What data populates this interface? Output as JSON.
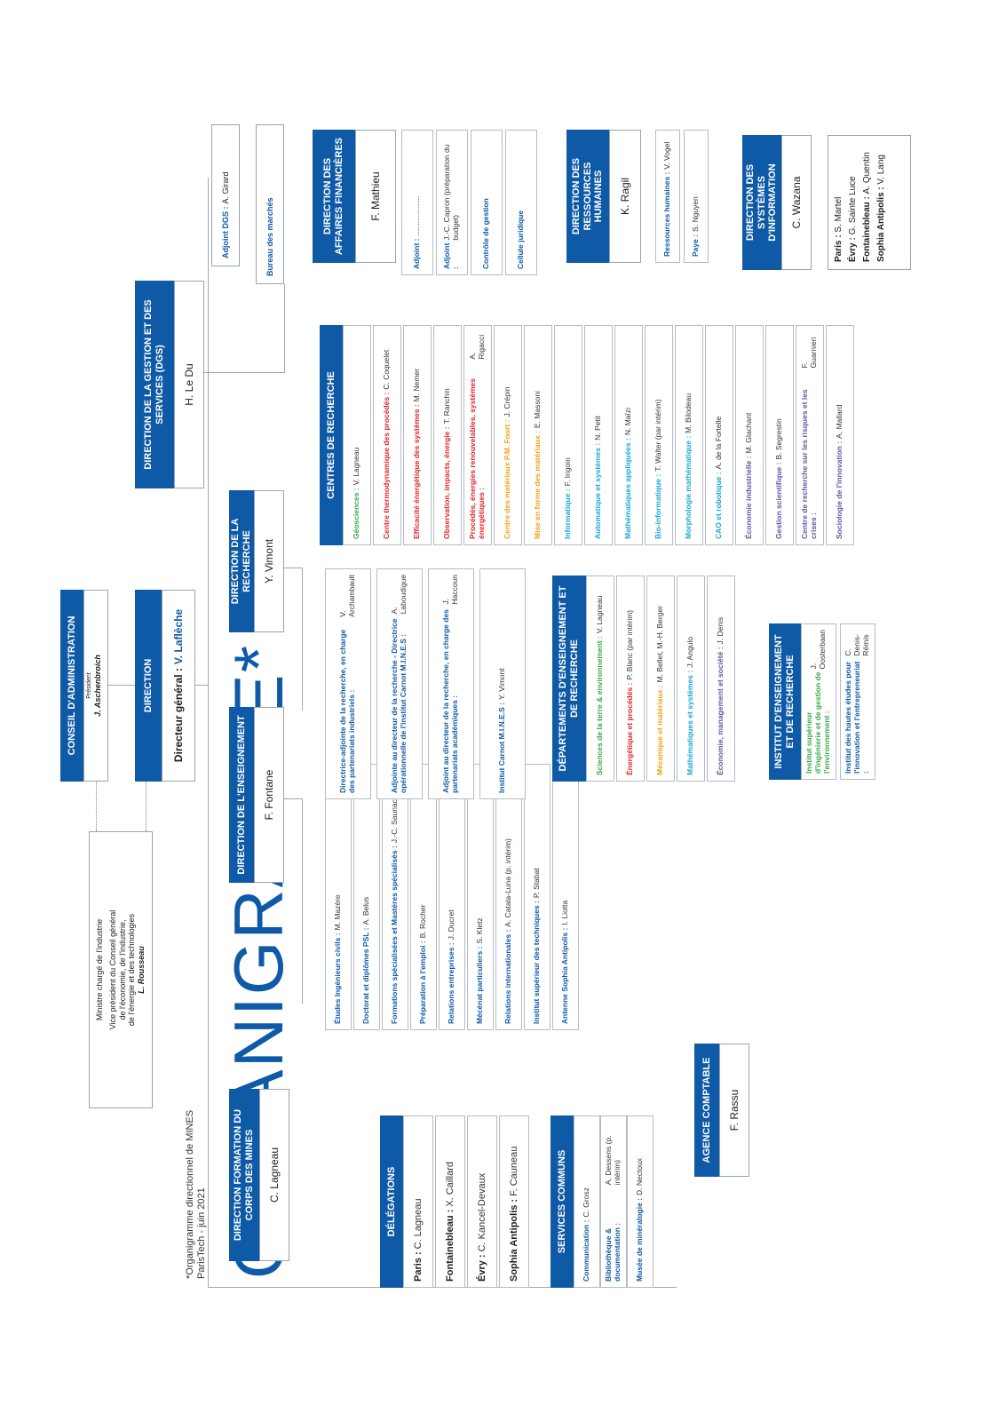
{
  "title": "ORGANIGRAMME*",
  "footnote1": "*Organigramme directionnel de MINES",
  "footnote2": "ParisTech - juin 2021",
  "ministry": {
    "l1": "Ministre chargé de l'industrie",
    "l2": "Vice président du Conseil général",
    "l3": "de l'économie, de l'industrie,",
    "l4": "de l'énergie et des technologies",
    "l5": "L. Rousseau"
  },
  "ca": {
    "title": "Conseil d'administration",
    "role": "Président",
    "name": "J. Aschenbroich"
  },
  "direction": {
    "title": "Direction",
    "label": "Directeur général :",
    "name": "V. Laflèche"
  },
  "dfcm": {
    "title": "Direction formation du corps des mines",
    "name": "C. Lagneau"
  },
  "delegations": {
    "title": "Délégations",
    "items": [
      {
        "k": "Paris :",
        "v": "C. Lagneau"
      },
      {
        "k": "Fontainebleau :",
        "v": "X. Caillard"
      },
      {
        "k": "Évry :",
        "v": "C. Kancel-Devaux"
      },
      {
        "k": "Sophia Antipolis :",
        "v": "F. Cauneau"
      }
    ]
  },
  "services": {
    "title": "Services communs",
    "items": [
      {
        "k": "Communication :",
        "v": "C. Grosz"
      },
      {
        "k": "Bibliothèque & documentation :",
        "v": "A. Dessens (p. intérim)"
      },
      {
        "k": "Musée de minéralogie :",
        "v": "D. Nectoux"
      }
    ]
  },
  "agence": {
    "title": "Agence comptable",
    "name": "F. Rassu"
  },
  "enseignement": {
    "title": "Direction de l'enseignement",
    "name": "F. Fontane",
    "items": [
      {
        "k": "Études Ingénieurs civils :",
        "v": "M. Mazère"
      },
      {
        "k": "Doctorat et diplômes PSL :",
        "v": "A. Belus"
      },
      {
        "k": "Formations spécialisées et Mastères spécialisés :",
        "v": "J.-C. Sauriac"
      },
      {
        "k": "Préparation à l'emploi :",
        "v": "B. Rocher"
      },
      {
        "k": "Relations entreprises :",
        "v": "J. Ducret"
      },
      {
        "k": "Mécénat particuliers :",
        "v": "S. Kletz"
      },
      {
        "k": "Relations internationales :",
        "v": "A. Catala-Luna (p. intérim)"
      },
      {
        "k": "Institut supérieur des techniques :",
        "v": "P. Stabat"
      },
      {
        "k": "Antenne Sophia Antipolis :",
        "v": "I. Liotta"
      }
    ]
  },
  "recherche": {
    "title": "Direction de la recherche",
    "name": "Y. Vimont",
    "items": [
      {
        "k": "Directrice-adjointe de la recherche, en charge des partenariats industriels :",
        "v": "V. Archambault"
      },
      {
        "k": "Adjointe au directeur de la recherche - Directrice opérationnelle de l'institut Carnot M.I.N.E.S :",
        "v": "A. Laboudigue"
      },
      {
        "k": "Adjoint au directeur de la recherche, en charge des partenariats académiques :",
        "v": "J. Haccoun"
      },
      {
        "k": "Institut Carnot M.I.N.E.S :",
        "v": "Y. Vimont"
      }
    ]
  },
  "departements": {
    "title": "Départements d'enseignement et de recherche",
    "items": [
      {
        "k": "Sciences de la terre & environnement :",
        "v": "V. Lagneau",
        "c": "#3aa84a"
      },
      {
        "k": "Énergétique et procédés :",
        "v": "P. Blanc (par intérim)",
        "c": "#e2262a"
      },
      {
        "k": "Mécanique et matériaux :",
        "v": "M. Bellet, M.-H. Berger",
        "c": "#f2a21b"
      },
      {
        "k": "Mathématiques et systèmes :",
        "v": "J. Angulo",
        "c": "#19a7d6"
      },
      {
        "k": "Économie, management et société :",
        "v": "J. Denis",
        "c": "#6a52a2"
      }
    ]
  },
  "institut": {
    "title": "Institut d'enseignement et de recherche",
    "items": [
      {
        "k": "Institut supérieur d'ingénierie et de gestion de l'environnement :",
        "v": "J. Oosterbaan",
        "c": "#3aa84a"
      },
      {
        "k": "Institut des hautes études pour l'innovation et l'entrepreneuriat :",
        "v": "C. Denis-Rémis",
        "c": "#0e5aa7"
      }
    ]
  },
  "centres": {
    "title": "Centres de recherche",
    "items": [
      {
        "k": "Géosciences :",
        "v": "V. Lagneau",
        "c": "#3aa84a"
      },
      {
        "k": "Centre thermodynamique des procédés :",
        "v": "C. Coquelet",
        "c": "#e2262a"
      },
      {
        "k": "Efficacité énergétique des systèmes :",
        "v": "M. Nemer",
        "c": "#e2262a"
      },
      {
        "k": "Observation, impacts, énergie :",
        "v": "T. Ranchin",
        "c": "#e2262a"
      },
      {
        "k": "Procédés, énergies renouvelables, systèmes énergétiques :",
        "v": "A. Rigacci",
        "c": "#e2262a"
      },
      {
        "k": "Centre des matériaux P.M. Fourt :",
        "v": "J. Crépin",
        "c": "#f2a21b"
      },
      {
        "k": "Mise en forme des matériaux :",
        "v": "E. Massoni",
        "c": "#f2a21b"
      },
      {
        "k": "Informatique :",
        "v": "F. Irigoin",
        "c": "#19a7d6"
      },
      {
        "k": "Automatique et systèmes :",
        "v": "N. Petit",
        "c": "#19a7d6"
      },
      {
        "k": "Mathématiques appliquées :",
        "v": "N. Maïzi",
        "c": "#19a7d6"
      },
      {
        "k": "Bio-informatique :",
        "v": "T. Walter (par intérim)",
        "c": "#19a7d6"
      },
      {
        "k": "Morphologie mathématique :",
        "v": "M. Bilodeau",
        "c": "#19a7d6"
      },
      {
        "k": "CAO et robotique :",
        "v": "A. de la Fortelle",
        "c": "#19a7d6"
      },
      {
        "k": "Économie industrielle :",
        "v": "M. Glachant",
        "c": "#6a52a2"
      },
      {
        "k": "Gestion scientifique :",
        "v": "B. Segrestin",
        "c": "#6a52a2"
      },
      {
        "k": "Centre de recherche sur les risques et les crises :",
        "v": "F. Guarnieri",
        "c": "#6a52a2"
      },
      {
        "k": "Sociologie de l'innovation :",
        "v": "A. Mallard",
        "c": "#6a52a2"
      }
    ]
  },
  "dgs": {
    "title": "Direction de la gestion et des services (DGS)",
    "name": "H. Le Du",
    "adjoint_k": "Adjoint DGS :",
    "adjoint_v": "A. Girard",
    "bureau": "Bureau des marchés"
  },
  "daf": {
    "title": "Direction des affaires financières",
    "name": "F. Mathieu",
    "items": [
      {
        "k": "Adjoint :",
        "v": "..................."
      },
      {
        "k": "Adjoint :",
        "v": "J.-C. Capron (préparation du budget)"
      },
      {
        "k": "Contrôle de gestion",
        "v": ""
      },
      {
        "k": "Cellule juridique",
        "v": ""
      }
    ]
  },
  "drh": {
    "title": "Direction des ressources humaines",
    "name": "K. Ragil",
    "items": [
      {
        "k": "Ressources humaines :",
        "v": "V. Vogel"
      },
      {
        "k": "Paye :",
        "v": "S. Nguyen"
      }
    ]
  },
  "dsi": {
    "title": "Direction des systèmes d'information",
    "name": "C. Wazana",
    "sites": [
      {
        "k": "Paris :",
        "v": "S. Martel"
      },
      {
        "k": "Évry :",
        "v": "G. Sainte Luce"
      },
      {
        "k": "Fontainebleau :",
        "v": "A. Quentin"
      },
      {
        "k": "Sophia Antipolis :",
        "v": "V. Lang"
      }
    ]
  }
}
